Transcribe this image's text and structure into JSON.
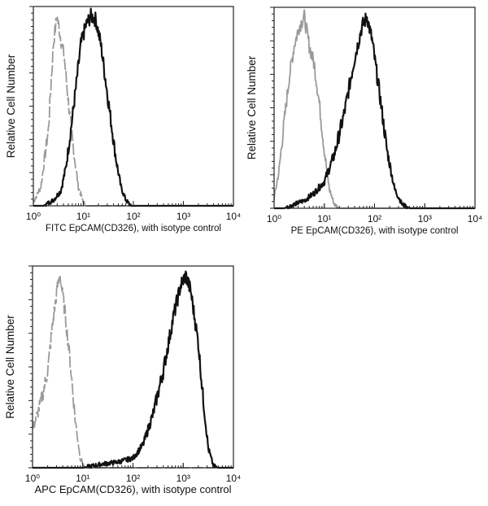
{
  "chart_data": [
    {
      "type": "line",
      "title": "",
      "xlabel": "FITC  EpCAM(CD326),  with isotype control",
      "ylabel": "Relative Cell Number",
      "xscale": "log",
      "xlim_log10": [
        0,
        4
      ],
      "ylim": [
        0,
        105
      ],
      "x_tick_labels": [
        "10⁰",
        "10¹",
        "10²",
        "10³",
        "10⁴"
      ],
      "series": [
        {
          "name": "isotype control",
          "color": "#9a9a9a",
          "style": "dashed",
          "log10_x": [
            0,
            0.15,
            0.3,
            0.4,
            0.47,
            0.55,
            0.62,
            0.7,
            0.8,
            0.9,
            1.0,
            1.05,
            4
          ],
          "values": [
            2,
            10,
            40,
            85,
            100,
            88,
            78,
            55,
            30,
            10,
            2,
            0,
            0
          ]
        },
        {
          "name": "EpCAM(CD326)",
          "color": "#111111",
          "style": "solid",
          "log10_x": [
            0,
            0.2,
            0.4,
            0.55,
            0.65,
            0.75,
            0.85,
            0.95,
            1.05,
            1.15,
            1.25,
            1.35,
            1.45,
            1.55,
            1.65,
            1.75,
            1.85,
            1.95,
            4
          ],
          "values": [
            0,
            0,
            3,
            8,
            20,
            40,
            62,
            85,
            95,
            100,
            98,
            85,
            65,
            45,
            25,
            10,
            3,
            0,
            0
          ]
        }
      ]
    },
    {
      "type": "line",
      "title": "",
      "xlabel": "PE  EpCAM(CD326),  with isotype control",
      "ylabel": "Relative Cell Number",
      "xscale": "log",
      "xlim_log10": [
        0,
        4
      ],
      "ylim": [
        0,
        105
      ],
      "x_tick_labels": [
        "10⁰",
        "10¹",
        "10²",
        "10³",
        "10⁴"
      ],
      "series": [
        {
          "name": "isotype control",
          "color": "#9a9a9a",
          "style": "solid",
          "log10_x": [
            0,
            0.1,
            0.2,
            0.3,
            0.4,
            0.5,
            0.6,
            0.7,
            0.8,
            0.9,
            1.0,
            1.1,
            1.2,
            1.3,
            4
          ],
          "values": [
            5,
            20,
            45,
            68,
            85,
            95,
            100,
            85,
            75,
            55,
            30,
            10,
            2,
            0,
            0
          ]
        },
        {
          "name": "EpCAM(CD326)",
          "color": "#111111",
          "style": "solid",
          "log10_x": [
            0,
            0.2,
            0.4,
            0.6,
            0.8,
            1.0,
            1.2,
            1.4,
            1.6,
            1.75,
            1.85,
            1.95,
            2.1,
            2.25,
            2.4,
            2.55,
            2.7,
            4
          ],
          "values": [
            0,
            0,
            2,
            4,
            8,
            14,
            28,
            50,
            78,
            95,
            100,
            88,
            60,
            30,
            10,
            2,
            0,
            0
          ]
        }
      ]
    },
    {
      "type": "line",
      "title": "",
      "xlabel": "APC EpCAM(CD326), with isotype control",
      "ylabel": "Relative Cell Number",
      "xscale": "log",
      "xlim_log10": [
        0,
        4
      ],
      "ylim": [
        0,
        105
      ],
      "x_tick_labels": [
        "10⁰",
        "10¹",
        "10²",
        "10³",
        "10⁴"
      ],
      "series": [
        {
          "name": "isotype control",
          "color": "#9a9a9a",
          "style": "dashed",
          "log10_x": [
            0,
            0.1,
            0.2,
            0.3,
            0.4,
            0.5,
            0.55,
            0.65,
            0.75,
            0.85,
            0.95,
            1.05,
            4
          ],
          "values": [
            20,
            28,
            38,
            50,
            75,
            95,
            100,
            80,
            55,
            25,
            5,
            0,
            0
          ]
        },
        {
          "name": "EpCAM(CD326)",
          "color": "#111111",
          "style": "solid",
          "log10_x": [
            0,
            1.0,
            1.4,
            1.7,
            2.0,
            2.2,
            2.4,
            2.6,
            2.8,
            2.95,
            3.05,
            3.15,
            3.3,
            3.4,
            3.5,
            3.6,
            3.7,
            4
          ],
          "values": [
            0,
            0,
            2,
            3,
            5,
            12,
            28,
            50,
            78,
            95,
            100,
            92,
            65,
            35,
            10,
            1,
            0,
            0
          ]
        }
      ]
    }
  ]
}
